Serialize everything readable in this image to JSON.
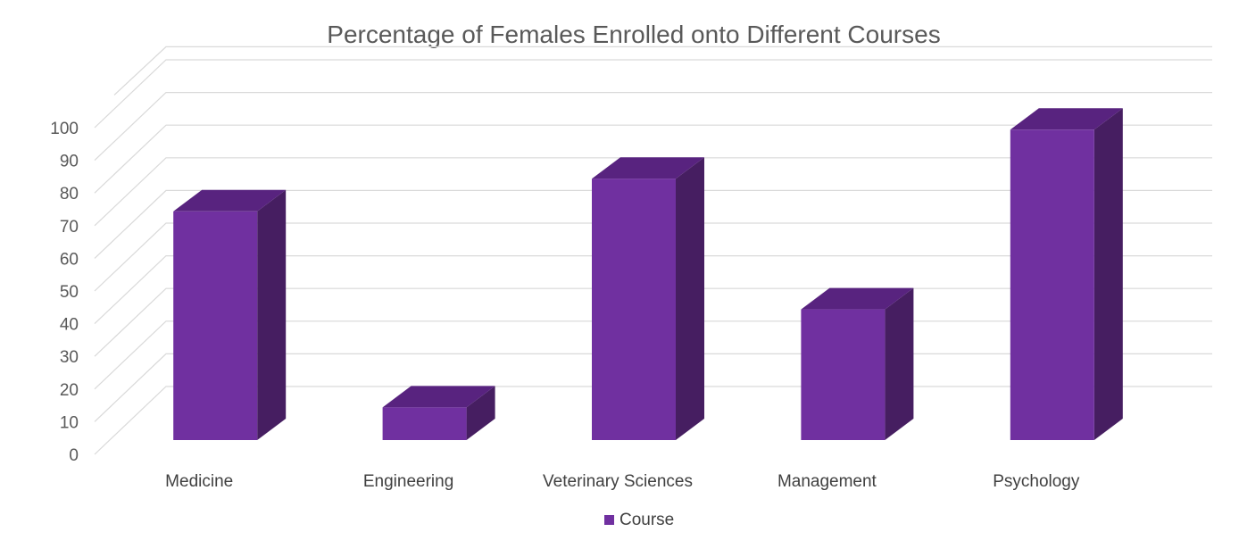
{
  "chart_data": {
    "type": "bar",
    "title": "Percentage of Females Enrolled onto Different Courses",
    "categories": [
      "Medicine",
      "Engineering",
      "Veterinary Sciences",
      "Management",
      "Psychology"
    ],
    "series": [
      {
        "name": "Course",
        "values": [
          70,
          10,
          80,
          40,
          95
        ]
      }
    ],
    "y_ticks": [
      "0",
      "10",
      "20",
      "30",
      "40",
      "50",
      "60",
      "70",
      "80",
      "90",
      "100"
    ],
    "ylim": [
      0,
      100
    ],
    "grid": true,
    "legend": "bottom",
    "style": "3d-column",
    "colors": {
      "front": "#7030a0",
      "top": "#58237f",
      "side": "#461e61",
      "grid": "#d9d9d9"
    }
  }
}
